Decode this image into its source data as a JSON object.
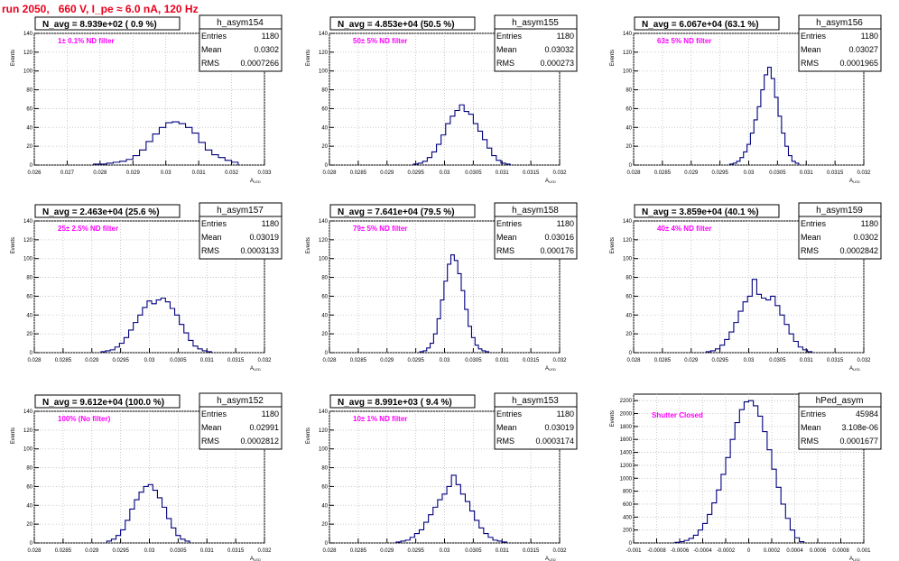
{
  "page_title": "run 2050,   660 V, I_pe ≈ 6.0 nA, 120 Hz",
  "colors": {
    "title": "#e8001c",
    "annotation": "#ff00ff",
    "histogram": "#00007f",
    "grid": "#bdbdbd"
  },
  "y_axis_label": "Events",
  "x_axis_label": "A",
  "x_axis_label_sub": "LED",
  "stats_labels": {
    "entries": "Entries",
    "mean": "Mean",
    "rms": "RMS"
  },
  "chart_data": [
    {
      "type": "histogram",
      "name": "h_asym154",
      "header": "N_avg = 8.939e+02 ( 0.9 %)",
      "annotation": "1± 0.1% ND filter",
      "stats": {
        "entries": "1180",
        "mean": "0.0302",
        "rms": "0.0007266"
      },
      "xlim": [
        0.026,
        0.033
      ],
      "ylim": [
        0,
        140
      ],
      "xticks": [
        "0.026",
        "0.027",
        "0.028",
        "0.029",
        "0.03",
        "0.031",
        "0.032",
        "0.033"
      ],
      "yticks": [
        "0",
        "20",
        "40",
        "60",
        "80",
        "100",
        "120",
        "140"
      ],
      "bin_centers": [
        0.0279,
        0.0281,
        0.0283,
        0.0285,
        0.0287,
        0.0289,
        0.0291,
        0.0293,
        0.0295,
        0.0297,
        0.0299,
        0.0301,
        0.0303,
        0.0305,
        0.0307,
        0.0309,
        0.0311,
        0.0313,
        0.0315,
        0.0317,
        0.0319,
        0.0321
      ],
      "counts": [
        1,
        1,
        2,
        3,
        4,
        6,
        10,
        16,
        25,
        33,
        40,
        45,
        46,
        44,
        40,
        34,
        24,
        16,
        11,
        8,
        5,
        3
      ]
    },
    {
      "type": "histogram",
      "name": "h_asym155",
      "header": "N_avg = 4.853e+04 (50.5 %)",
      "annotation": "50± 5% ND filter",
      "stats": {
        "entries": "1180",
        "mean": "0.03032",
        "rms": "0.000273"
      },
      "xlim": [
        0.028,
        0.032
      ],
      "ylim": [
        0,
        140
      ],
      "xticks": [
        "0.028",
        "0.0285",
        "0.029",
        "0.0295",
        "0.03",
        "0.0305",
        "0.031",
        "0.0315",
        "0.032"
      ],
      "yticks": [
        "0",
        "20",
        "40",
        "60",
        "80",
        "100",
        "120",
        "140"
      ],
      "bin_centers": [
        0.0295,
        0.02958,
        0.02966,
        0.02974,
        0.02982,
        0.0299,
        0.02998,
        0.03006,
        0.03014,
        0.03022,
        0.0303,
        0.03038,
        0.03046,
        0.03054,
        0.03062,
        0.0307,
        0.03078,
        0.03086,
        0.03094,
        0.03102,
        0.0311
      ],
      "counts": [
        1,
        2,
        4,
        8,
        14,
        22,
        32,
        44,
        52,
        58,
        64,
        57,
        54,
        44,
        36,
        27,
        18,
        10,
        5,
        2,
        1
      ]
    },
    {
      "type": "histogram",
      "name": "h_asym156",
      "header": "N_avg = 6.067e+04 (63.1 %)",
      "annotation": "63± 5% ND filter",
      "stats": {
        "entries": "1180",
        "mean": "0.03027",
        "rms": "0.0001965"
      },
      "xlim": [
        0.028,
        0.032
      ],
      "ylim": [
        0,
        140
      ],
      "xticks": [
        "0.028",
        "0.0285",
        "0.029",
        "0.0295",
        "0.03",
        "0.0305",
        "0.031",
        "0.0315",
        "0.032"
      ],
      "yticks": [
        "0",
        "20",
        "40",
        "60",
        "80",
        "100",
        "120",
        "140"
      ],
      "bin_centers": [
        0.0297,
        0.02976,
        0.02982,
        0.02988,
        0.02994,
        0.03,
        0.03006,
        0.03012,
        0.03018,
        0.03024,
        0.0303,
        0.03036,
        0.03042,
        0.03048,
        0.03054,
        0.0306,
        0.03066,
        0.03072,
        0.03078,
        0.03084
      ],
      "counts": [
        1,
        2,
        4,
        8,
        14,
        22,
        34,
        48,
        62,
        80,
        96,
        104,
        92,
        72,
        52,
        34,
        20,
        10,
        4,
        2
      ]
    },
    {
      "type": "histogram",
      "name": "h_asym157",
      "header": "N_avg = 2.463e+04 (25.6 %)",
      "annotation": "25± 2.5% ND filter",
      "stats": {
        "entries": "1180",
        "mean": "0.03019",
        "rms": "0.0003133"
      },
      "xlim": [
        0.028,
        0.032
      ],
      "ylim": [
        0,
        140
      ],
      "xticks": [
        "0.028",
        "0.0285",
        "0.029",
        "0.0295",
        "0.03",
        "0.0305",
        "0.031",
        "0.0315",
        "0.032"
      ],
      "yticks": [
        "0",
        "20",
        "40",
        "60",
        "80",
        "100",
        "120",
        "140"
      ],
      "bin_centers": [
        0.0292,
        0.02928,
        0.02936,
        0.02944,
        0.02952,
        0.0296,
        0.02968,
        0.02976,
        0.02984,
        0.02992,
        0.03,
        0.03008,
        0.03016,
        0.03024,
        0.03032,
        0.0304,
        0.03048,
        0.03056,
        0.03064,
        0.03072,
        0.0308,
        0.03088,
        0.03096,
        0.03104
      ],
      "counts": [
        1,
        2,
        3,
        6,
        10,
        16,
        24,
        32,
        40,
        48,
        55,
        52,
        56,
        58,
        54,
        47,
        40,
        30,
        21,
        13,
        7,
        4,
        2,
        1
      ]
    },
    {
      "type": "histogram",
      "name": "h_asym158",
      "header": "N_avg = 7.641e+04 (79.5 %)",
      "annotation": "79± 5% ND filter",
      "stats": {
        "entries": "1180",
        "mean": "0.03016",
        "rms": "0.000176"
      },
      "xlim": [
        0.028,
        0.032
      ],
      "ylim": [
        0,
        140
      ],
      "xticks": [
        "0.028",
        "0.0285",
        "0.029",
        "0.0295",
        "0.03",
        "0.0305",
        "0.031",
        "0.0315",
        "0.032"
      ],
      "yticks": [
        "0",
        "20",
        "40",
        "60",
        "80",
        "100",
        "120",
        "140"
      ],
      "bin_centers": [
        0.0296,
        0.02966,
        0.02972,
        0.02978,
        0.02984,
        0.0299,
        0.02996,
        0.03002,
        0.03008,
        0.03014,
        0.0302,
        0.03026,
        0.03032,
        0.03038,
        0.03044,
        0.0305,
        0.03056,
        0.03062,
        0.03068,
        0.03074
      ],
      "counts": [
        1,
        2,
        5,
        10,
        20,
        36,
        56,
        76,
        94,
        104,
        98,
        84,
        66,
        46,
        28,
        16,
        8,
        4,
        2,
        1
      ]
    },
    {
      "type": "histogram",
      "name": "h_asym159",
      "header": "N_avg = 3.859e+04 (40.1 %)",
      "annotation": "40± 4% ND filter",
      "stats": {
        "entries": "1180",
        "mean": "0.0302",
        "rms": "0.0002842"
      },
      "xlim": [
        0.028,
        0.032
      ],
      "ylim": [
        0,
        140
      ],
      "xticks": [
        "0.028",
        "0.0285",
        "0.029",
        "0.0295",
        "0.03",
        "0.0305",
        "0.031",
        "0.0315",
        "0.032"
      ],
      "yticks": [
        "0",
        "20",
        "40",
        "60",
        "80",
        "100",
        "120",
        "140"
      ],
      "bin_centers": [
        0.0293,
        0.02938,
        0.02946,
        0.02954,
        0.02962,
        0.0297,
        0.02978,
        0.02986,
        0.02994,
        0.03002,
        0.0301,
        0.03018,
        0.03026,
        0.03034,
        0.03042,
        0.0305,
        0.03058,
        0.03066,
        0.03074,
        0.03082,
        0.0309,
        0.03098,
        0.03106
      ],
      "counts": [
        1,
        2,
        4,
        8,
        14,
        22,
        32,
        44,
        54,
        60,
        78,
        62,
        58,
        56,
        60,
        50,
        40,
        30,
        20,
        12,
        6,
        3,
        1
      ]
    },
    {
      "type": "histogram",
      "name": "h_asym152",
      "header": "N_avg = 9.612e+04 (100.0 %)",
      "annotation": "100% (No filter)",
      "stats": {
        "entries": "1180",
        "mean": "0.02991",
        "rms": "0.0002812"
      },
      "xlim": [
        0.028,
        0.032
      ],
      "ylim": [
        0,
        140
      ],
      "xticks": [
        "0.028",
        "0.0285",
        "0.029",
        "0.0295",
        "0.03",
        "0.0305",
        "0.031",
        "0.0315",
        "0.032"
      ],
      "yticks": [
        "0",
        "20",
        "40",
        "60",
        "80",
        "100",
        "120",
        "140"
      ],
      "bin_centers": [
        0.0293,
        0.02938,
        0.02946,
        0.02954,
        0.02962,
        0.0297,
        0.02978,
        0.02986,
        0.02994,
        0.03002,
        0.0301,
        0.03018,
        0.03026,
        0.03034,
        0.03042,
        0.0305,
        0.03058,
        0.03066
      ],
      "counts": [
        2,
        4,
        8,
        14,
        24,
        36,
        46,
        54,
        60,
        62,
        56,
        48,
        38,
        26,
        16,
        8,
        4,
        2
      ]
    },
    {
      "type": "histogram",
      "name": "h_asym153",
      "header": "N_avg = 8.991e+03 ( 9.4 %)",
      "annotation": "10± 1% ND filter",
      "stats": {
        "entries": "1180",
        "mean": "0.03019",
        "rms": "0.0003174"
      },
      "xlim": [
        0.028,
        0.032
      ],
      "ylim": [
        0,
        140
      ],
      "xticks": [
        "0.028",
        "0.0285",
        "0.029",
        "0.0295",
        "0.03",
        "0.0305",
        "0.031",
        "0.0315",
        "0.032"
      ],
      "yticks": [
        "0",
        "20",
        "40",
        "60",
        "80",
        "100",
        "120",
        "140"
      ],
      "bin_centers": [
        0.0292,
        0.02928,
        0.02936,
        0.02944,
        0.02952,
        0.0296,
        0.02968,
        0.02976,
        0.02984,
        0.02992,
        0.03,
        0.03008,
        0.03016,
        0.03024,
        0.03032,
        0.0304,
        0.03048,
        0.03056,
        0.03064,
        0.03072,
        0.0308,
        0.03088,
        0.03096,
        0.03104
      ],
      "counts": [
        1,
        2,
        3,
        6,
        10,
        14,
        22,
        30,
        38,
        46,
        52,
        60,
        72,
        62,
        52,
        44,
        34,
        24,
        16,
        10,
        6,
        3,
        2,
        1
      ]
    },
    {
      "type": "histogram",
      "name": "hPed_asym",
      "header": "",
      "annotation": "Shutter Closed",
      "stats": {
        "entries": "45984",
        "mean": "3.108e-06",
        "rms": "0.0001677"
      },
      "xlim": [
        -0.001,
        0.001
      ],
      "ylim": [
        0,
        2300
      ],
      "xticks": [
        "-0.001",
        "-0.0008",
        "-0.0006",
        "-0.0004",
        "-0.0002",
        "0",
        "0.0002",
        "0.0004",
        "0.0006",
        "0.0008",
        "0.001"
      ],
      "yticks": [
        "0",
        "200",
        "400",
        "600",
        "800",
        "1000",
        "1200",
        "1400",
        "1600",
        "1800",
        "2000",
        "2200"
      ],
      "bin_centers": [
        -0.00062,
        -0.00058,
        -0.00054,
        -0.0005,
        -0.00046,
        -0.00042,
        -0.00038,
        -0.00034,
        -0.0003,
        -0.00026,
        -0.00022,
        -0.00018,
        -0.00014,
        -0.0001,
        -6e-05,
        -2e-05,
        2e-05,
        6e-05,
        0.0001,
        0.00014,
        0.00018,
        0.00022,
        0.00026,
        0.0003,
        0.00034,
        0.00038,
        0.00042,
        0.00046
      ],
      "counts": [
        10,
        20,
        40,
        70,
        120,
        200,
        300,
        440,
        620,
        820,
        1060,
        1320,
        1600,
        1860,
        2060,
        2180,
        2200,
        2120,
        1960,
        1720,
        1440,
        1140,
        860,
        600,
        380,
        200,
        80,
        20
      ]
    }
  ]
}
